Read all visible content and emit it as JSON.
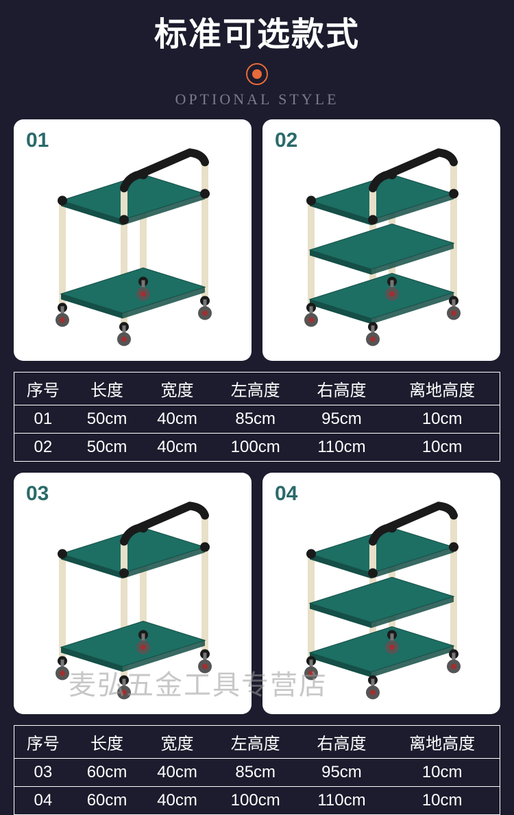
{
  "header": {
    "title_cn": "标准可选款式",
    "subtitle_en": "OPTIONAL STYLE",
    "accent_color": "#e96a3a"
  },
  "cart_style": {
    "shelf_color": "#1d6e63",
    "shelf_edge": "#154f47",
    "pipe_color": "#e8e0c8",
    "joint_color": "#1a1a1a",
    "wheel_color": "#555555",
    "wheel_hub": "#a03030"
  },
  "groups": [
    {
      "cards": [
        {
          "num": "01",
          "shelves": 2
        },
        {
          "num": "02",
          "shelves": 3
        }
      ],
      "table": {
        "headers": [
          "序号",
          "长度",
          "宽度",
          "左高度",
          "右高度",
          "离地高度"
        ],
        "rows": [
          [
            "01",
            "50cm",
            "40cm",
            "85cm",
            "95cm",
            "10cm"
          ],
          [
            "02",
            "50cm",
            "40cm",
            "100cm",
            "110cm",
            "10cm"
          ]
        ]
      }
    },
    {
      "cards": [
        {
          "num": "03",
          "shelves": 2
        },
        {
          "num": "04",
          "shelves": 3
        }
      ],
      "table": {
        "headers": [
          "序号",
          "长度",
          "宽度",
          "左高度",
          "右高度",
          "离地高度"
        ],
        "rows": [
          [
            "03",
            "60cm",
            "40cm",
            "85cm",
            "95cm",
            "10cm"
          ],
          [
            "04",
            "60cm",
            "40cm",
            "100cm",
            "110cm",
            "10cm"
          ]
        ]
      }
    }
  ],
  "watermark": "麦弘五金工具专营店"
}
